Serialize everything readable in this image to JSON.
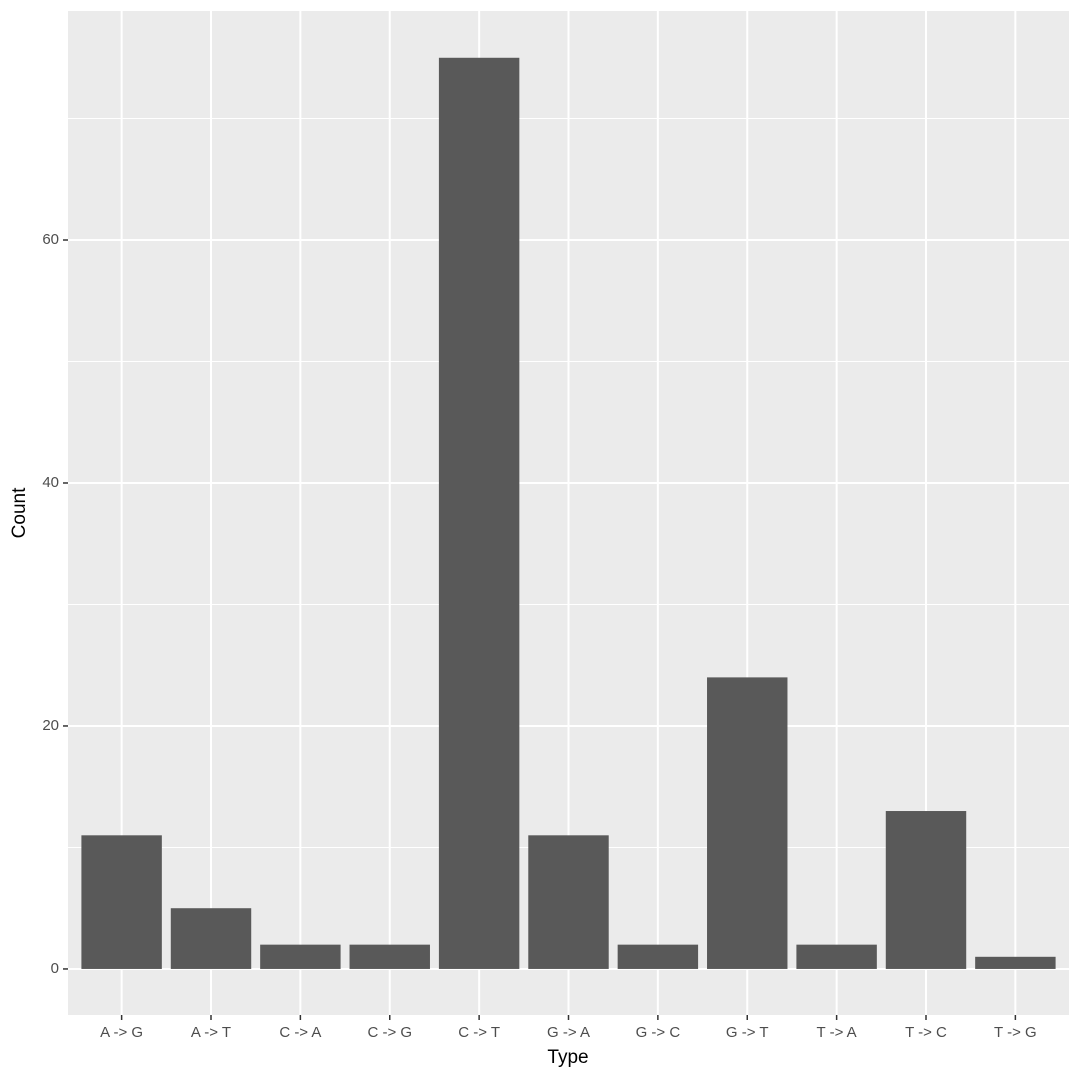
{
  "chart_data": {
    "type": "bar",
    "x_label": "Type",
    "y_label": "Count",
    "categories": [
      "A -> G",
      "A -> T",
      "C -> A",
      "C -> G",
      "C -> T",
      "G -> A",
      "G -> C",
      "G -> T",
      "T -> A",
      "T -> C",
      "T -> G"
    ],
    "values": [
      11,
      5,
      2,
      2,
      75,
      11,
      2,
      24,
      2,
      13,
      1
    ],
    "color": "#595959",
    "ylim": [
      -3.79,
      78.85
    ],
    "yticks": [
      0,
      20,
      40,
      60
    ],
    "minor_yticks": [
      10,
      30,
      50,
      70
    ],
    "grid": true
  }
}
